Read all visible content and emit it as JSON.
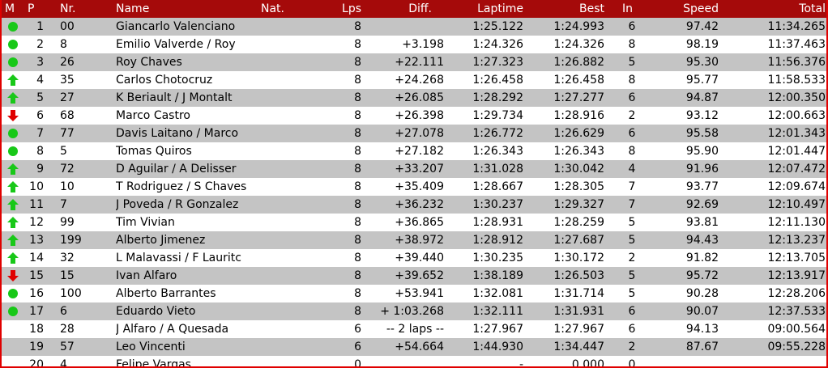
{
  "columns": {
    "m": "M",
    "p": "P",
    "nr": "Nr.",
    "name": "Name",
    "nat": "Nat.",
    "lps": "Lps",
    "diff": "Diff.",
    "laptime": "Laptime",
    "best": "Best",
    "in": "In",
    "speed": "Speed",
    "total": "Total"
  },
  "colors": {
    "header": "#a50a0a",
    "border": "#e00000",
    "same": "#18c818",
    "up": "#18c818",
    "down": "#e00000",
    "stripe": "#c4c4c4"
  },
  "rows": [
    {
      "m": "same",
      "p": "1",
      "nr": "00",
      "name": "Giancarlo Valenciano",
      "lps": "8",
      "diff": "",
      "laptime": "1:25.122",
      "best": "1:24.993",
      "in": "6",
      "speed": "97.42",
      "total": "11:34.265"
    },
    {
      "m": "same",
      "p": "2",
      "nr": "8",
      "name": "Emilio Valverde / Roy",
      "lps": "8",
      "diff": "+3.198",
      "laptime": "1:24.326",
      "best": "1:24.326",
      "in": "8",
      "speed": "98.19",
      "total": "11:37.463"
    },
    {
      "m": "same",
      "p": "3",
      "nr": "26",
      "name": "Roy Chaves",
      "lps": "8",
      "diff": "+22.111",
      "laptime": "1:27.323",
      "best": "1:26.882",
      "in": "5",
      "speed": "95.30",
      "total": "11:56.376"
    },
    {
      "m": "up",
      "p": "4",
      "nr": "35",
      "name": "Carlos Chotocruz",
      "lps": "8",
      "diff": "+24.268",
      "laptime": "1:26.458",
      "best": "1:26.458",
      "in": "8",
      "speed": "95.77",
      "total": "11:58.533"
    },
    {
      "m": "up",
      "p": "5",
      "nr": "27",
      "name": "K Beriault  /  J Montalt",
      "lps": "8",
      "diff": "+26.085",
      "laptime": "1:28.292",
      "best": "1:27.277",
      "in": "6",
      "speed": "94.87",
      "total": "12:00.350"
    },
    {
      "m": "down",
      "p": "6",
      "nr": "68",
      "name": "Marco Castro",
      "lps": "8",
      "diff": "+26.398",
      "laptime": "1:29.734",
      "best": "1:28.916",
      "in": "2",
      "speed": "93.12",
      "total": "12:00.663"
    },
    {
      "m": "same",
      "p": "7",
      "nr": "77",
      "name": "Davis Laitano /  Marco",
      "lps": "8",
      "diff": "+27.078",
      "laptime": "1:26.772",
      "best": "1:26.629",
      "in": "6",
      "speed": "95.58",
      "total": "12:01.343"
    },
    {
      "m": "same",
      "p": "8",
      "nr": "5",
      "name": "Tomas Quiros",
      "lps": "8",
      "diff": "+27.182",
      "laptime": "1:26.343",
      "best": "1:26.343",
      "in": "8",
      "speed": "95.90",
      "total": "12:01.447"
    },
    {
      "m": "up",
      "p": "9",
      "nr": "72",
      "name": "D Aguilar / A Delisser",
      "lps": "8",
      "diff": "+33.207",
      "laptime": "1:31.028",
      "best": "1:30.042",
      "in": "4",
      "speed": "91.96",
      "total": "12:07.472"
    },
    {
      "m": "up",
      "p": "10",
      "nr": "10",
      "name": "T Rodriguez  / S Chaves",
      "lps": "8",
      "diff": "+35.409",
      "laptime": "1:28.667",
      "best": "1:28.305",
      "in": "7",
      "speed": "93.77",
      "total": "12:09.674"
    },
    {
      "m": "up",
      "p": "11",
      "nr": "7",
      "name": "J Poveda / R Gonzalez",
      "lps": "8",
      "diff": "+36.232",
      "laptime": "1:30.237",
      "best": "1:29.327",
      "in": "7",
      "speed": "92.69",
      "total": "12:10.497"
    },
    {
      "m": "up",
      "p": "12",
      "nr": "99",
      "name": "Tim  Vivian",
      "lps": "8",
      "diff": "+36.865",
      "laptime": "1:28.931",
      "best": "1:28.259",
      "in": "5",
      "speed": "93.81",
      "total": "12:11.130"
    },
    {
      "m": "up",
      "p": "13",
      "nr": "199",
      "name": "Alberto  Jimenez",
      "lps": "8",
      "diff": "+38.972",
      "laptime": "1:28.912",
      "best": "1:27.687",
      "in": "5",
      "speed": "94.43",
      "total": "12:13.237"
    },
    {
      "m": "up",
      "p": "14",
      "nr": "32",
      "name": "L Malavassi  / F Lauritc",
      "lps": "8",
      "diff": "+39.440",
      "laptime": "1:30.235",
      "best": "1:30.172",
      "in": "2",
      "speed": "91.82",
      "total": "12:13.705"
    },
    {
      "m": "down",
      "p": "15",
      "nr": "15",
      "name": "Ivan  Alfaro",
      "lps": "8",
      "diff": "+39.652",
      "laptime": "1:38.189",
      "best": "1:26.503",
      "in": "5",
      "speed": "95.72",
      "total": "12:13.917"
    },
    {
      "m": "same",
      "p": "16",
      "nr": "100",
      "name": "Alberto Barrantes",
      "lps": "8",
      "diff": "+53.941",
      "laptime": "1:32.081",
      "best": "1:31.714",
      "in": "5",
      "speed": "90.28",
      "total": "12:28.206"
    },
    {
      "m": "same",
      "p": "17",
      "nr": "6",
      "name": "Eduardo Vieto",
      "lps": "8",
      "diff": "+ 1:03.268",
      "laptime": "1:32.111",
      "best": "1:31.931",
      "in": "6",
      "speed": "90.07",
      "total": "12:37.533"
    },
    {
      "m": "",
      "p": "18",
      "nr": "28",
      "name": "J Alfaro / A Quesada",
      "lps": "6",
      "diff": "-- 2 laps --",
      "laptime": "1:27.967",
      "best": "1:27.967",
      "in": "6",
      "speed": "94.13",
      "total": "09:00.564"
    },
    {
      "m": "",
      "p": "19",
      "nr": "57",
      "name": "Leo Vincenti",
      "lps": "6",
      "diff": "+54.664",
      "laptime": "1:44.930",
      "best": "1:34.447",
      "in": "2",
      "speed": "87.67",
      "total": "09:55.228"
    },
    {
      "m": "",
      "p": "20",
      "nr": "4",
      "name": "Felipe Vargas",
      "lps": "0",
      "diff": "",
      "laptime": "-",
      "best": "0.000",
      "in": "0",
      "speed": "",
      "total": ""
    }
  ]
}
